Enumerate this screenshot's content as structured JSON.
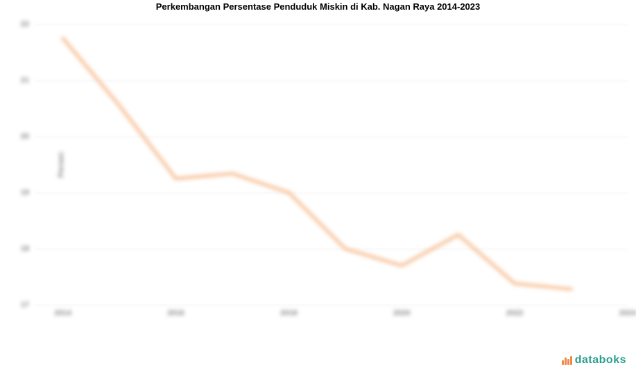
{
  "chart": {
    "type": "line",
    "title": "Perkembangan Persentase Penduduk Miskin di Kab. Nagan Raya 2014-2023",
    "title_fontsize": 13,
    "title_color": "#000000",
    "background_color": "#ffffff",
    "line_color": "#f8c6a0",
    "line_width": 5,
    "grid_color": "#eeeeee",
    "tick_color": "#888888",
    "tick_fontsize": 11,
    "ylabel": "Persen",
    "ylabel_fontsize": 11,
    "ylim": [
      17,
      22
    ],
    "yticks": [
      17,
      18,
      19,
      20,
      21,
      22
    ],
    "ytick_labels": [
      "17",
      "18",
      "19",
      "20",
      "21",
      "22"
    ],
    "xlim": [
      2013.5,
      2024
    ],
    "xticks": [
      2014,
      2016,
      2018,
      2020,
      2022,
      2024
    ],
    "xtick_labels": [
      "2014",
      "2016",
      "2018",
      "2020",
      "2022",
      "2024"
    ],
    "x": [
      2014,
      2015,
      2016,
      2017,
      2018,
      2019,
      2020,
      2021,
      2022,
      2023
    ],
    "y": [
      21.75,
      20.55,
      19.25,
      19.34,
      19.0,
      18.0,
      17.7,
      18.25,
      17.38,
      17.28
    ],
    "blurred": true
  },
  "logo": {
    "text": "databoks",
    "text_color": "#2a9d8f",
    "icon_color": "#f08a4b"
  }
}
